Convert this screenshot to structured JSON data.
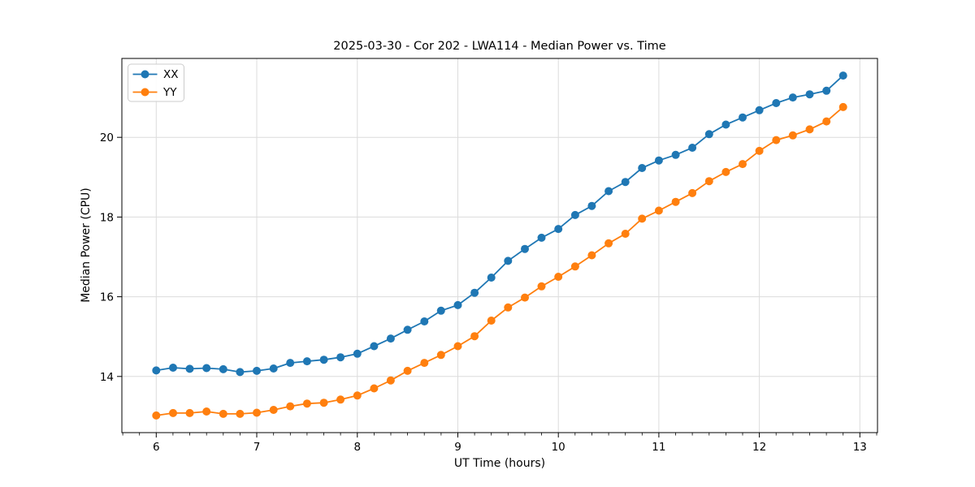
{
  "title": "2025-03-30 - Cor 202 - LWA114 - Median Power vs. Time",
  "colors": {
    "series_xx": "#1f77b4",
    "series_yy": "#ff7f0e",
    "grid": "#dcdcdc",
    "spine": "#000000",
    "legend_border": "#cccccc",
    "background": "#ffffff"
  },
  "chart_data": {
    "type": "line",
    "title": "2025-03-30 - Cor 202 - LWA114 - Median Power vs. Time",
    "xlabel": "UT Time (hours)",
    "ylabel": "Median Power (CPU)",
    "xlim": [
      5.658,
      13.175
    ],
    "ylim": [
      12.59,
      21.98
    ],
    "x_ticks": [
      6,
      7,
      8,
      9,
      10,
      11,
      12,
      13
    ],
    "y_ticks": [
      14,
      16,
      18,
      20
    ],
    "x_minor_interval": 0.1667,
    "grid": true,
    "legend_position": "upper-left",
    "marker": "circle",
    "x": [
      6.0,
      6.167,
      6.333,
      6.5,
      6.667,
      6.833,
      7.0,
      7.167,
      7.333,
      7.5,
      7.667,
      7.833,
      8.0,
      8.167,
      8.333,
      8.5,
      8.667,
      8.833,
      9.0,
      9.167,
      9.333,
      9.5,
      9.667,
      9.833,
      10.0,
      10.167,
      10.333,
      10.5,
      10.667,
      10.833,
      11.0,
      11.167,
      11.333,
      11.5,
      11.667,
      11.833,
      12.0,
      12.167,
      12.333,
      12.5,
      12.667,
      12.833
    ],
    "series": [
      {
        "name": "XX",
        "color": "#1f77b4",
        "values": [
          14.15,
          14.22,
          14.19,
          14.21,
          14.18,
          14.11,
          14.14,
          14.2,
          14.34,
          14.38,
          14.42,
          14.48,
          14.57,
          14.76,
          14.95,
          15.17,
          15.38,
          15.65,
          15.79,
          16.1,
          16.48,
          16.9,
          17.2,
          17.48,
          17.7,
          18.05,
          18.28,
          18.65,
          18.88,
          19.23,
          19.42,
          19.56,
          19.74,
          20.08,
          20.32,
          20.5,
          20.68,
          20.86,
          21.0,
          21.08,
          21.17,
          21.55
        ]
      },
      {
        "name": "YY",
        "color": "#ff7f0e",
        "values": [
          13.02,
          13.08,
          13.08,
          13.12,
          13.06,
          13.06,
          13.09,
          13.16,
          13.25,
          13.32,
          13.34,
          13.42,
          13.52,
          13.7,
          13.9,
          14.14,
          14.34,
          14.54,
          14.76,
          15.01,
          15.4,
          15.73,
          15.98,
          16.26,
          16.5,
          16.76,
          17.04,
          17.34,
          17.58,
          17.96,
          18.16,
          18.38,
          18.6,
          18.9,
          19.13,
          19.33,
          19.66,
          19.93,
          20.05,
          20.2,
          20.4,
          20.76
        ]
      }
    ]
  }
}
